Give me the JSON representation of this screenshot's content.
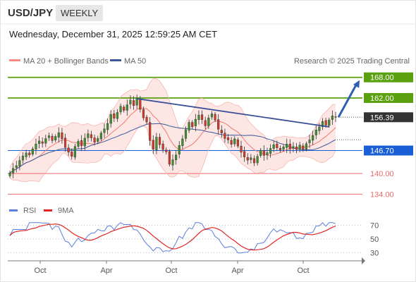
{
  "header": {
    "symbol": "USD/JPY",
    "period": "WEEKLY",
    "timestamp": "Wednesday, December 31, 2025 12:59:25 AM CET"
  },
  "chart_data": {
    "type": "candlestick",
    "legend": [
      {
        "name": "MA 20 + Bollinger Bands",
        "color": "#f28b82"
      },
      {
        "name": "MA 50",
        "color": "#3b5998"
      }
    ],
    "watermark": "Research © 2025 Trading Central",
    "x_ticks": [
      "Oct",
      "Apr",
      "Oct",
      "Apr",
      "Oct"
    ],
    "y_range": [
      131,
      170
    ],
    "levels": [
      {
        "label": "168.00",
        "value": 168.0,
        "role": "resistance",
        "color": "#5aa00f"
      },
      {
        "label": "162.00",
        "value": 162.0,
        "role": "resistance",
        "color": "#5aa00f"
      },
      {
        "label": "156.39",
        "value": 156.39,
        "role": "last-price",
        "color": "#333333"
      },
      {
        "label": "146.70",
        "value": 146.7,
        "role": "pivot",
        "color": "#1a5fd6"
      },
      {
        "label": "140.00",
        "value": 140.0,
        "role": "support",
        "color": "#e86a6a"
      },
      {
        "label": "134.00",
        "value": 134.0,
        "role": "support",
        "color": "#e86a6a"
      }
    ],
    "close": [
      140.2,
      141.5,
      142.3,
      143.8,
      145.1,
      146.0,
      145.4,
      147.2,
      148.6,
      149.5,
      148.8,
      150.2,
      151.0,
      149.6,
      150.8,
      151.9,
      150.1,
      147.6,
      146.2,
      145.0,
      147.9,
      149.4,
      148.1,
      150.3,
      151.6,
      150.4,
      149.1,
      150.2,
      151.8,
      153.0,
      154.6,
      157.2,
      156.1,
      157.8,
      159.6,
      158.4,
      160.0,
      161.4,
      159.8,
      161.9,
      158.7,
      156.2,
      155.0,
      149.6,
      147.1,
      150.6,
      148.4,
      147.0,
      146.3,
      142.7,
      144.0,
      145.4,
      148.2,
      150.1,
      152.8,
      154.9,
      153.6,
      155.8,
      157.0,
      155.7,
      153.9,
      156.2,
      157.4,
      155.6,
      152.9,
      151.8,
      150.2,
      149.8,
      148.5,
      150.1,
      148.0,
      146.2,
      144.8,
      143.9,
      144.6,
      143.1,
      145.0,
      146.8,
      145.3,
      146.1,
      147.3,
      148.4,
      147.5,
      146.9,
      147.8,
      148.6,
      147.2,
      147.9,
      147.0,
      148.3,
      147.1,
      148.7,
      149.8,
      151.1,
      152.7,
      153.6,
      155.2,
      154.1,
      155.6,
      156.8,
      156.39
    ],
    "rsi": {
      "levels": [
        70,
        50,
        30
      ],
      "series": [
        {
          "name": "RSI",
          "color": "#5b7fde"
        },
        {
          "name": "9MA",
          "color": "#e02424"
        }
      ]
    }
  }
}
